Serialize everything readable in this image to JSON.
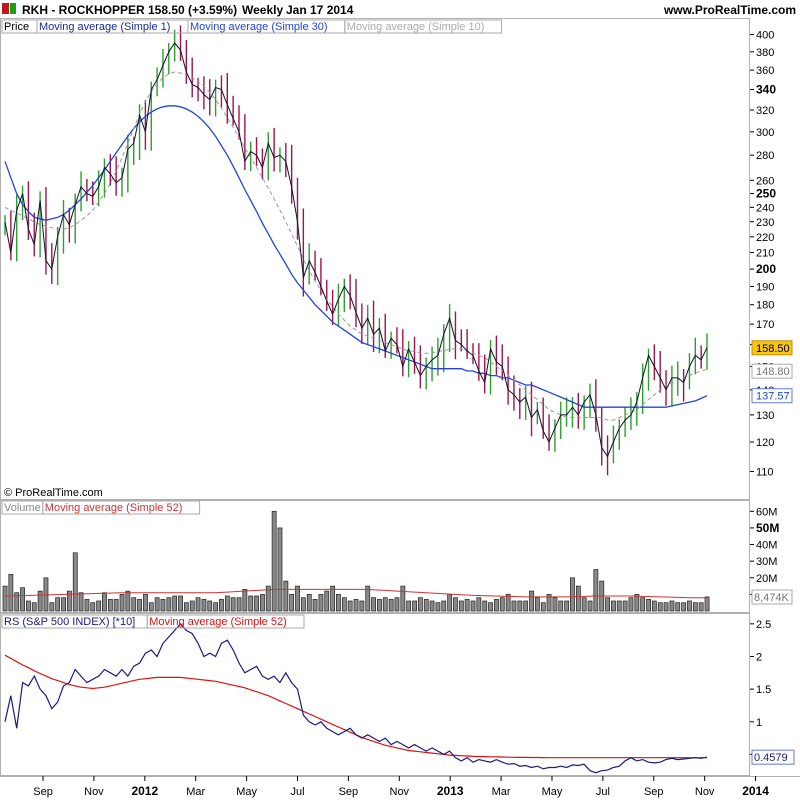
{
  "header": {
    "symbol": "RKH - ROCKHOPPER",
    "last": "158.50 (+3.59%)",
    "period": "Weekly",
    "date": "Jan 17 2014",
    "site": "www.ProRealTime.com"
  },
  "price_panel": {
    "legend": [
      "Price",
      "Moving average (Simple 1)",
      "Moving average (Simple 30)",
      "Moving average (Simple 10)"
    ],
    "copyright": "© ProRealTime.com",
    "labels": {
      "last": "158.50",
      "ma10": "148.80",
      "ma30": "137.57"
    }
  },
  "volume_panel": {
    "legend": [
      "Volume",
      "Moving average (Simple 52)"
    ],
    "last_label": "8,474K"
  },
  "rs_panel": {
    "legend": [
      "RS (S&P 500 INDEX) [*10]",
      "Moving average (Simple 52)"
    ],
    "last_label": "0.4579"
  },
  "chart_data": [
    {
      "type": "line",
      "title": "RKH - ROCKHOPPER Weekly Price",
      "scale": "log",
      "ylim": [
        102,
        415
      ],
      "y_ticks": [
        110,
        120,
        130,
        140,
        150,
        160,
        170,
        180,
        190,
        200,
        210,
        220,
        230,
        240,
        250,
        260,
        280,
        300,
        320,
        340,
        360,
        380,
        400
      ],
      "y_tick_bold": [
        200,
        250,
        340
      ],
      "x_ticks": [
        "Sep",
        "Nov",
        "2012",
        "Mar",
        "May",
        "Jul",
        "Sep",
        "Nov",
        "2013",
        "Mar",
        "May",
        "Jul",
        "Sep",
        "Nov",
        "2014"
      ],
      "x_tick_bold": [
        "2012",
        "2013",
        "2014"
      ],
      "series": [
        {
          "name": "Price",
          "values": [
            230,
            210,
            238,
            250,
            225,
            215,
            245,
            205,
            200,
            220,
            235,
            228,
            242,
            255,
            250,
            248,
            255,
            270,
            265,
            258,
            262,
            285,
            290,
            315,
            300,
            340,
            350,
            365,
            380,
            390,
            382,
            358,
            345,
            342,
            335,
            330,
            342,
            340,
            325,
            312,
            300,
            275,
            283,
            280,
            270,
            290,
            278,
            280,
            275,
            255,
            230,
            195,
            205,
            198,
            190,
            182,
            175,
            183,
            190,
            185,
            176,
            168,
            173,
            165,
            168,
            157,
            163,
            160,
            150,
            158,
            152,
            146,
            150,
            153,
            155,
            165,
            173,
            162,
            160,
            157,
            155,
            148,
            143,
            158,
            152,
            150,
            140,
            138,
            135,
            137,
            129,
            132,
            124,
            120,
            125,
            130,
            130,
            133,
            130,
            135,
            138,
            130,
            118,
            115,
            120,
            125,
            128,
            130,
            135,
            145,
            155,
            150,
            145,
            140,
            145,
            145,
            143,
            150,
            155,
            153,
            158.5
          ]
        },
        {
          "name": "Moving average (Simple 10)",
          "values": [
            240,
            238,
            236,
            234,
            232,
            230,
            228,
            227,
            226,
            225,
            225,
            226,
            228,
            231,
            234,
            238,
            244,
            250,
            258,
            267,
            278,
            290,
            303,
            316,
            328,
            338,
            346,
            352,
            356,
            358,
            357,
            355,
            352,
            348,
            343,
            337,
            330,
            322,
            313,
            304,
            295,
            286,
            278,
            270,
            262,
            254,
            246,
            238,
            230,
            222,
            214,
            206,
            199,
            193,
            188,
            183,
            179,
            175,
            172,
            169,
            167,
            165,
            164,
            163,
            162,
            161,
            160,
            159,
            158,
            157,
            157,
            156,
            156,
            156,
            157,
            157,
            158,
            158,
            158,
            157,
            156,
            155,
            154,
            152,
            150,
            148,
            146,
            144,
            142,
            140,
            138,
            136,
            134,
            132,
            131,
            130,
            129,
            129,
            129,
            129,
            129,
            129,
            129,
            128,
            128,
            129,
            130,
            131,
            132,
            134,
            136,
            138,
            140,
            142,
            143,
            144,
            145,
            146,
            147,
            148,
            148.8
          ]
        },
        {
          "name": "Moving average (Simple 30)",
          "values": [
            275,
            262,
            250,
            242,
            237,
            233,
            232,
            231,
            232,
            233,
            235,
            238,
            242,
            246,
            251,
            256,
            262,
            268,
            275,
            282,
            289,
            296,
            303,
            309,
            314,
            318,
            321,
            323,
            324,
            324,
            323,
            321,
            318,
            314,
            309,
            303,
            296,
            288,
            280,
            271,
            262,
            253,
            245,
            237,
            229,
            222,
            215,
            209,
            203,
            197,
            192,
            188,
            184,
            180,
            177,
            174,
            171,
            169,
            167,
            165,
            163,
            161,
            160,
            159,
            158,
            157,
            156,
            155,
            154,
            153,
            152,
            151,
            150,
            149,
            149,
            149,
            149,
            149,
            149,
            148,
            148,
            147,
            147,
            146,
            146,
            145,
            145,
            144,
            143,
            142,
            142,
            141,
            140,
            139,
            138,
            137,
            136,
            135,
            134,
            133,
            133,
            133,
            133,
            133,
            133,
            133,
            133,
            133,
            133,
            133,
            133,
            133,
            133,
            133,
            133.5,
            134,
            134.5,
            135,
            135.5,
            136.5,
            137.57
          ]
        }
      ]
    },
    {
      "type": "bar",
      "title": "Volume",
      "ylim": [
        0,
        65
      ],
      "y_ticks": [
        10,
        20,
        30,
        40,
        50,
        60
      ],
      "y_tick_labels": [
        "10M",
        "20M",
        "30M",
        "40M",
        "50M",
        "60M"
      ],
      "y_tick_bold": [
        50
      ],
      "series": [
        {
          "name": "Volume",
          "values": [
            15,
            22,
            11,
            14,
            6,
            5,
            12,
            20,
            5,
            8,
            8,
            12,
            35,
            11,
            7,
            5,
            6,
            11,
            7,
            7,
            10,
            12,
            8,
            7,
            10,
            5,
            8,
            7,
            8,
            9,
            9,
            5,
            6,
            8,
            7,
            6,
            5,
            7,
            9,
            8,
            8,
            13,
            9,
            9,
            10,
            15,
            60,
            50,
            18,
            10,
            15,
            8,
            10,
            7,
            10,
            12,
            15,
            10,
            8,
            6,
            7,
            6,
            15,
            8,
            7,
            8,
            7,
            8,
            15,
            6,
            6,
            8,
            7,
            6,
            5,
            6,
            10,
            8,
            6,
            7,
            6,
            8,
            6,
            5,
            7,
            8,
            10,
            6,
            6,
            6,
            12,
            8,
            5,
            10,
            8,
            6,
            6,
            20,
            15,
            8,
            6,
            25,
            18,
            8,
            6,
            6,
            6,
            8,
            10,
            8,
            7,
            6,
            5,
            5,
            6,
            5,
            5,
            6,
            5,
            5,
            8.474
          ]
        },
        {
          "name": "Moving average (Simple 52)",
          "values": [
            9,
            9.1,
            9.2,
            9.3,
            9.4,
            9.5,
            9.6,
            9.7,
            9.8,
            9.9,
            10,
            10.1,
            10.2,
            10.3,
            10.4,
            10.5,
            10.6,
            10.7,
            10.8,
            10.9,
            11,
            11,
            11,
            11,
            11,
            11,
            11,
            11,
            11,
            11,
            11,
            11,
            11,
            11,
            11,
            11,
            11,
            11.2,
            11.4,
            11.6,
            11.8,
            12,
            12.2,
            12.4,
            12.6,
            12.8,
            13,
            13,
            13,
            13,
            13,
            13,
            13,
            13,
            13,
            13,
            13,
            13,
            13,
            13,
            13,
            13,
            13,
            12.8,
            12.6,
            12.4,
            12.2,
            12,
            11.8,
            11.6,
            11.4,
            11.2,
            11,
            10.8,
            10.6,
            10.4,
            10.2,
            10,
            9.8,
            9.6,
            9.4,
            9.3,
            9.2,
            9.1,
            9,
            8.9,
            8.8,
            8.7,
            8.6,
            8.5,
            8.5,
            8.5,
            8.5,
            8.5,
            8.5,
            8.5,
            8.5,
            8.6,
            8.7,
            8.8,
            8.9,
            9,
            9,
            9,
            9,
            9,
            9,
            9,
            8.9,
            8.8,
            8.7,
            8.6,
            8.5,
            8.4,
            8.3,
            8.2,
            8.1,
            8,
            8,
            8,
            8
          ]
        }
      ]
    },
    {
      "type": "line",
      "title": "RS (S&P 500 INDEX) [*10]",
      "ylim": [
        0.2,
        2.62
      ],
      "y_ticks": [
        0.5,
        1,
        1.5,
        2,
        2.5
      ],
      "y_tick_labels": [
        "0.5",
        "1",
        "1.5",
        "2",
        "2.5"
      ],
      "series": [
        {
          "name": "RS (S&P 500 INDEX) [*10]",
          "values": [
            1.0,
            1.4,
            0.9,
            1.6,
            1.55,
            1.7,
            1.5,
            1.4,
            1.2,
            1.3,
            1.55,
            1.6,
            1.8,
            1.7,
            1.6,
            1.65,
            1.7,
            1.8,
            1.75,
            1.7,
            1.8,
            1.7,
            1.85,
            1.9,
            2.05,
            2.1,
            2.0,
            2.2,
            2.3,
            2.4,
            2.5,
            2.4,
            2.35,
            2.2,
            2.0,
            2.05,
            2.0,
            2.2,
            2.25,
            2.1,
            1.9,
            1.75,
            1.8,
            1.85,
            1.7,
            1.65,
            1.7,
            1.6,
            1.75,
            1.6,
            1.5,
            1.1,
            1.0,
            0.95,
            1.0,
            0.9,
            0.85,
            0.8,
            0.85,
            0.9,
            0.8,
            0.75,
            0.8,
            0.75,
            0.7,
            0.75,
            0.65,
            0.7,
            0.65,
            0.6,
            0.65,
            0.6,
            0.55,
            0.6,
            0.55,
            0.5,
            0.55,
            0.45,
            0.4,
            0.45,
            0.38,
            0.42,
            0.4,
            0.38,
            0.42,
            0.38,
            0.35,
            0.36,
            0.32,
            0.33,
            0.3,
            0.32,
            0.28,
            0.3,
            0.3,
            0.32,
            0.3,
            0.34,
            0.33,
            0.35,
            0.25,
            0.22,
            0.25,
            0.26,
            0.3,
            0.32,
            0.4,
            0.45,
            0.4,
            0.42,
            0.38,
            0.37,
            0.38,
            0.42,
            0.44,
            0.42,
            0.43,
            0.44,
            0.45,
            0.44,
            0.4579
          ]
        },
        {
          "name": "Moving average (Simple 52)",
          "values": [
            2.02,
            1.97,
            1.92,
            1.87,
            1.83,
            1.78,
            1.74,
            1.7,
            1.66,
            1.63,
            1.6,
            1.57,
            1.55,
            1.53,
            1.52,
            1.51,
            1.52,
            1.53,
            1.55,
            1.57,
            1.59,
            1.61,
            1.63,
            1.65,
            1.66,
            1.67,
            1.68,
            1.68,
            1.68,
            1.68,
            1.68,
            1.67,
            1.66,
            1.65,
            1.64,
            1.63,
            1.62,
            1.6,
            1.58,
            1.56,
            1.54,
            1.52,
            1.49,
            1.46,
            1.43,
            1.4,
            1.36,
            1.32,
            1.28,
            1.24,
            1.2,
            1.16,
            1.12,
            1.08,
            1.04,
            1.0,
            0.96,
            0.92,
            0.88,
            0.84,
            0.8,
            0.76,
            0.73,
            0.7,
            0.67,
            0.64,
            0.62,
            0.6,
            0.58,
            0.56,
            0.55,
            0.54,
            0.53,
            0.52,
            0.51,
            0.5,
            0.49,
            0.485,
            0.48,
            0.475,
            0.47,
            0.468,
            0.466,
            0.464,
            0.462,
            0.46,
            0.458,
            0.456,
            0.455,
            0.454,
            0.453,
            0.452,
            0.451,
            0.45,
            0.45,
            0.45,
            0.45,
            0.45,
            0.45,
            0.45,
            0.45,
            0.45,
            0.45,
            0.45,
            0.45,
            0.45,
            0.45,
            0.45,
            0.45,
            0.45,
            0.45,
            0.45,
            0.45,
            0.45,
            0.45,
            0.45,
            0.45,
            0.45,
            0.45,
            0.45,
            0.45
          ]
        }
      ]
    }
  ],
  "colors": {
    "up": "#2e9f2e",
    "down": "#a01448",
    "ma1": "#101030",
    "ma30": "#2244dd",
    "ma10": "#999999",
    "vol_ma": "#cc3333",
    "rs": "#1a1a80",
    "rs_ma": "#dd1111",
    "last_bg": "#f5c518"
  }
}
